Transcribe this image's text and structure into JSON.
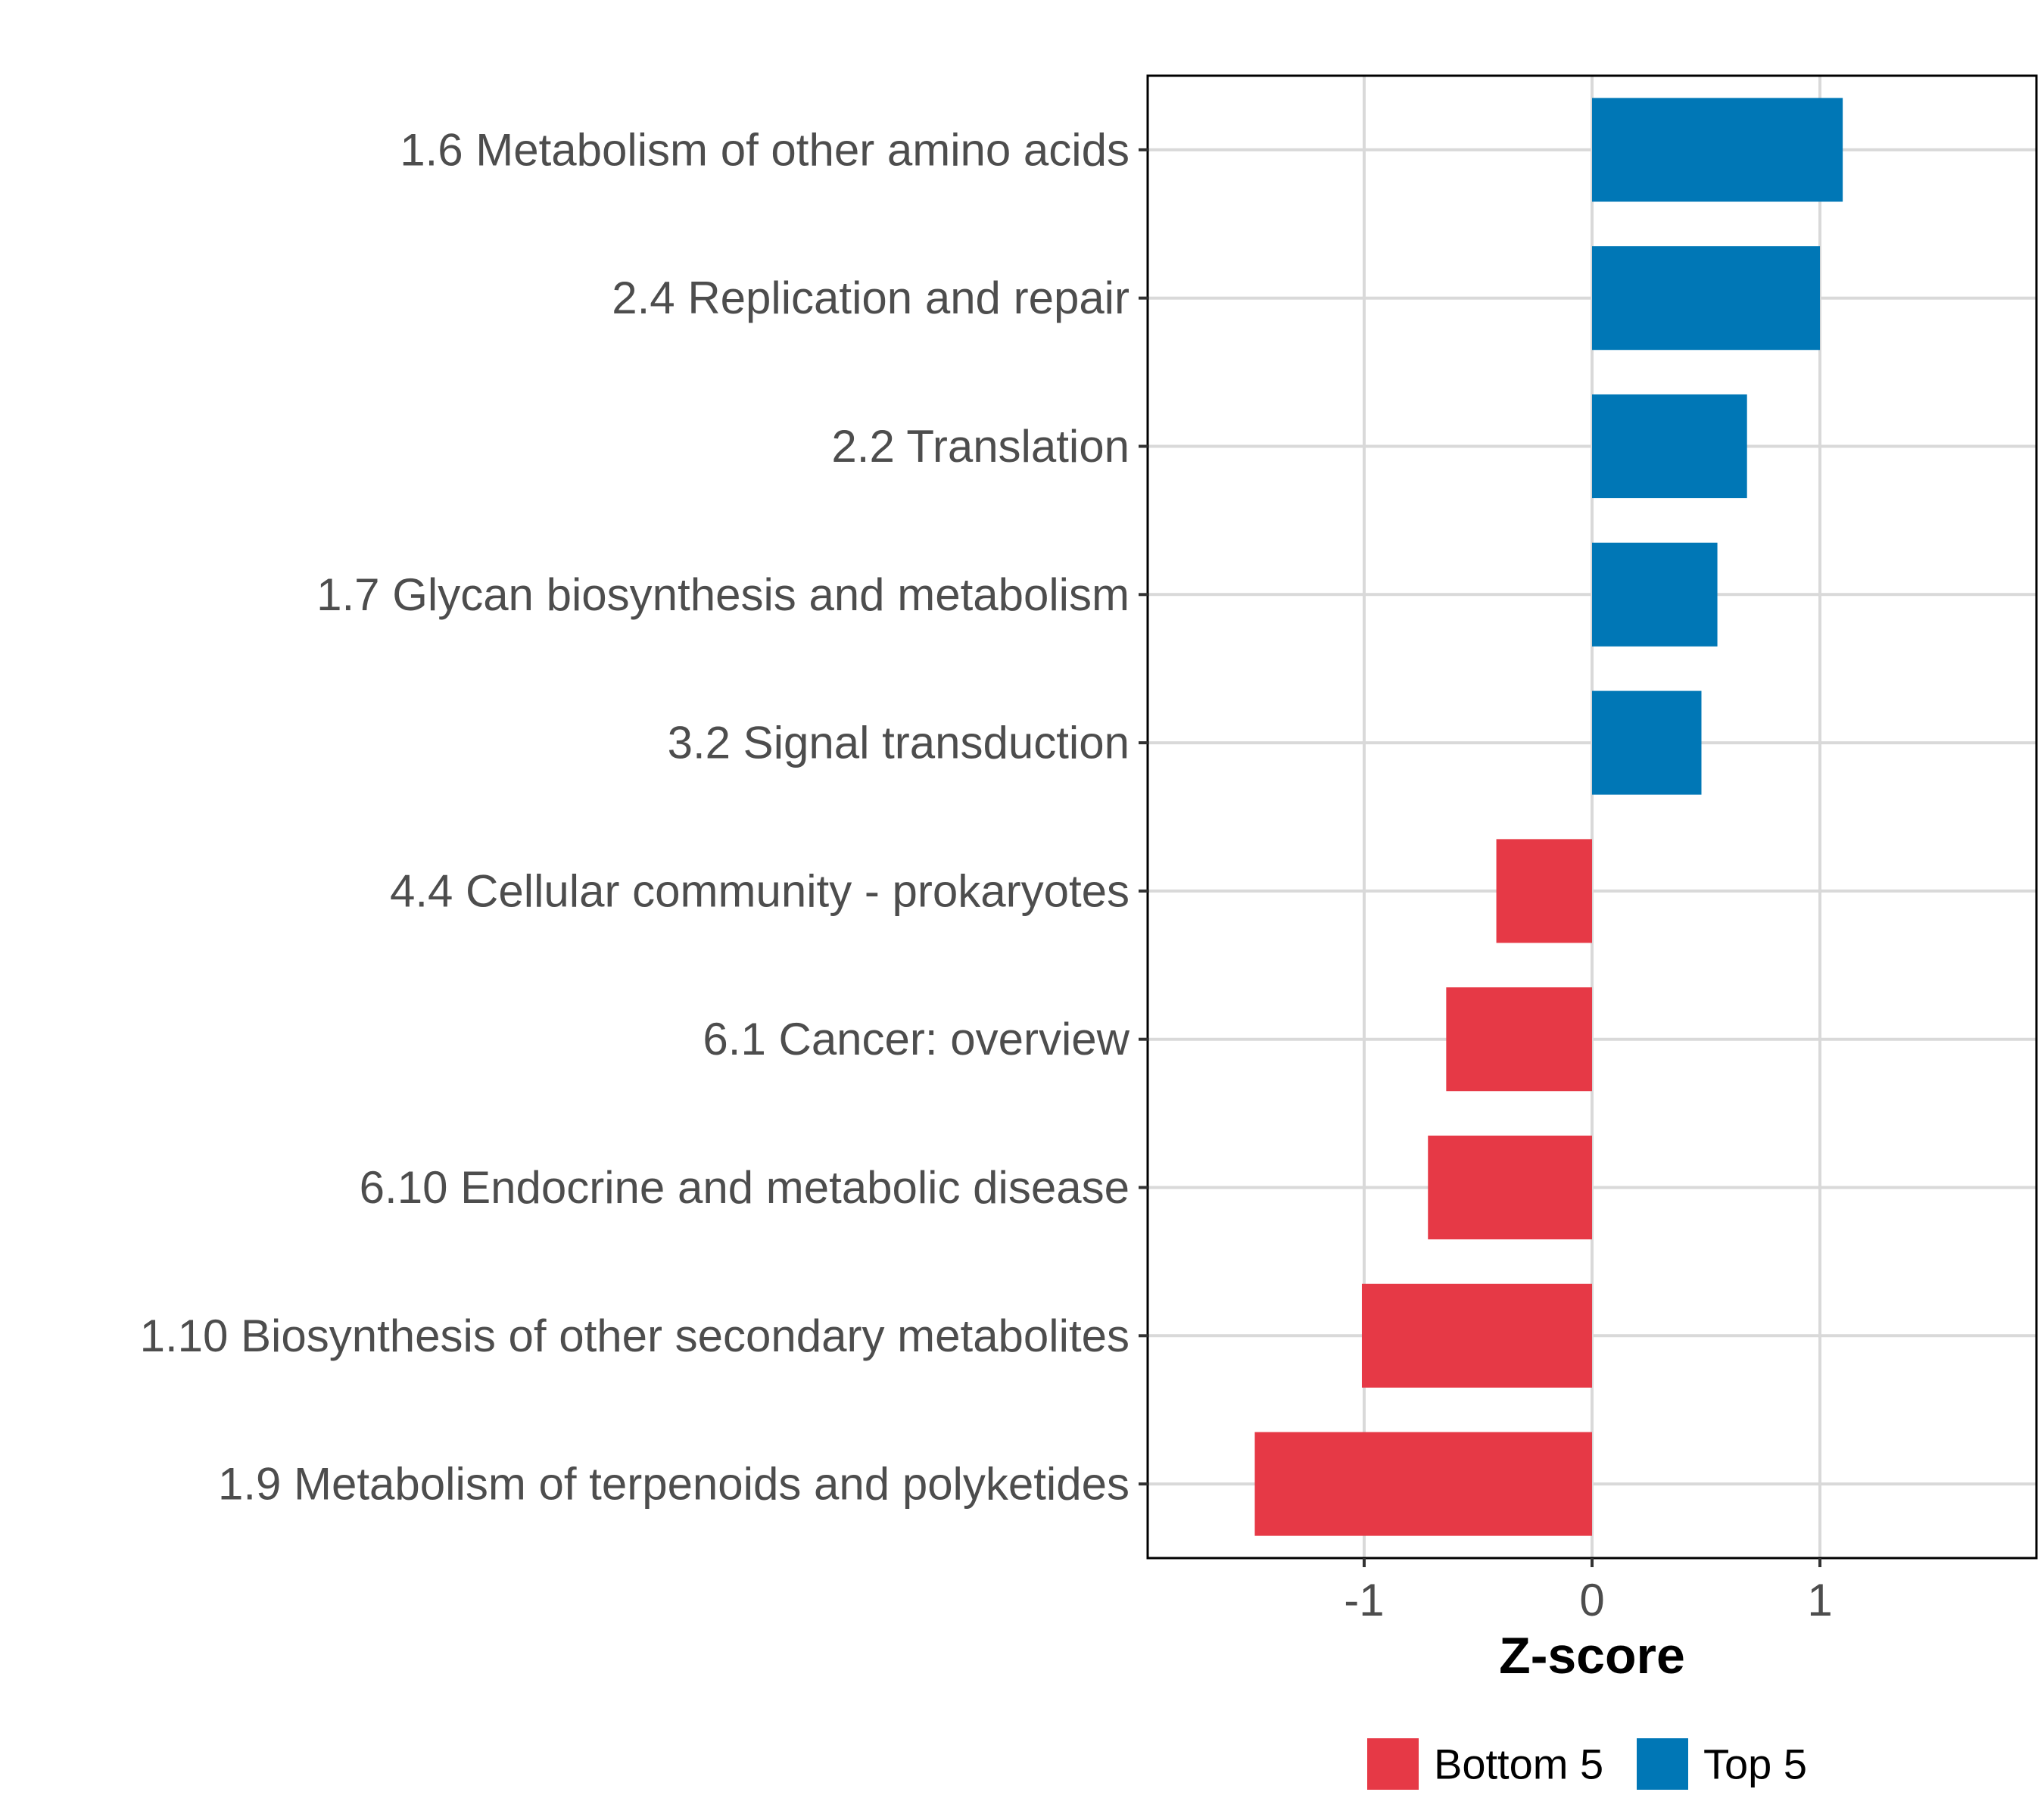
{
  "chart_data": {
    "type": "bar",
    "orientation": "horizontal",
    "xlabel": "Z-score",
    "ylabel": "",
    "xlim": [
      -1.95,
      1.95
    ],
    "xticks": [
      -1,
      0,
      1
    ],
    "xtick_labels": [
      "-1",
      "0",
      "1"
    ],
    "grid": true,
    "legend_position": "bottom",
    "categories": [
      "1.6 Metabolism of other amino acids",
      "2.4 Replication and repair",
      "2.2 Translation",
      "1.7 Glycan biosynthesis and metabolism",
      "3.2 Signal transduction",
      "4.4 Cellular community - prokaryotes",
      "6.1 Cancer: overview",
      "6.10 Endocrine and metabolic disease",
      "1.10 Biosynthesis of other secondary metabolites",
      "1.9 Metabolism of terpenoids and polyketides"
    ],
    "values": [
      1.1,
      1.0,
      0.68,
      0.55,
      0.48,
      -0.42,
      -0.64,
      -0.72,
      -1.01,
      -1.48
    ],
    "groups": [
      "Top 5",
      "Top 5",
      "Top 5",
      "Top 5",
      "Top 5",
      "Bottom 5",
      "Bottom 5",
      "Bottom 5",
      "Bottom 5",
      "Bottom 5"
    ],
    "legend": [
      {
        "label": "Bottom 5",
        "color": "#e63946"
      },
      {
        "label": "Top 5",
        "color": "#0077b6"
      }
    ]
  }
}
